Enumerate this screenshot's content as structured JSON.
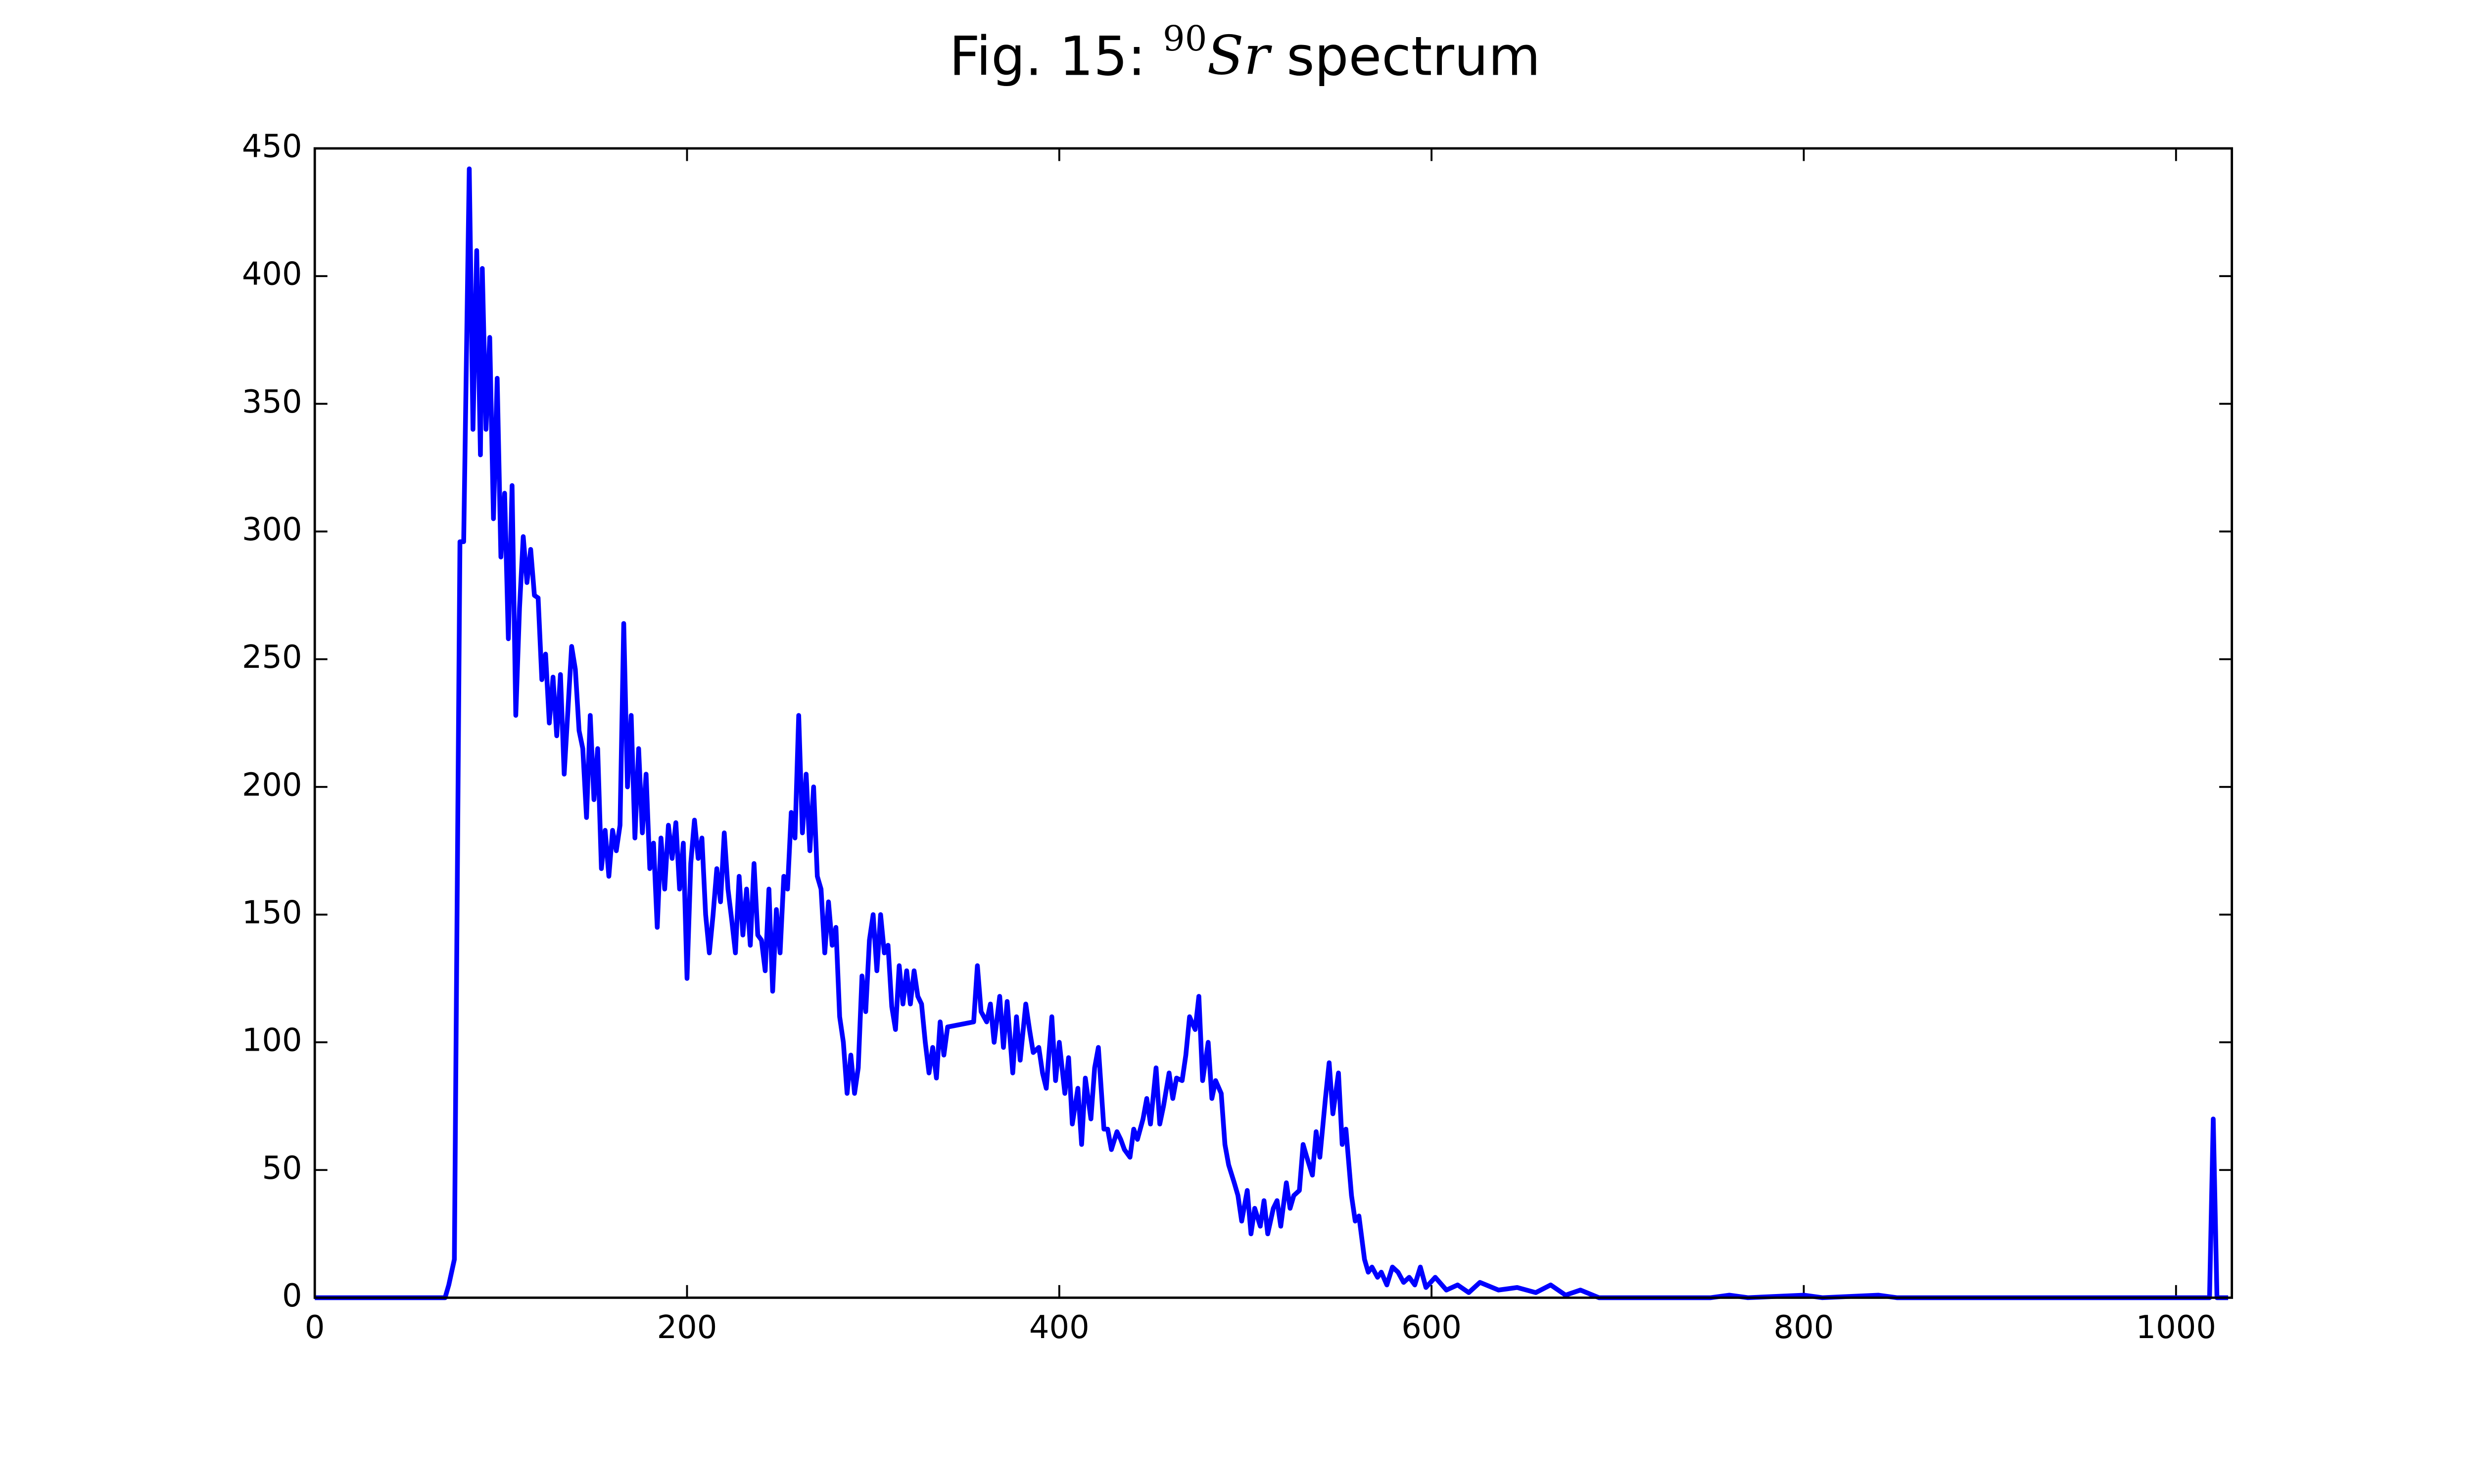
{
  "chart_data": {
    "type": "line",
    "title": [
      "Fig. 15: ",
      "90",
      "Sr",
      " spectrum"
    ],
    "xlim": [
      0,
      1030
    ],
    "ylim": [
      0,
      450
    ],
    "xticks": [
      0,
      200,
      400,
      600,
      800,
      1000
    ],
    "yticks": [
      0,
      50,
      100,
      150,
      200,
      250,
      300,
      350,
      400,
      450
    ],
    "grid": false,
    "series": [
      {
        "color": "#0000ff",
        "x": [
          0,
          70,
          72,
          75,
          78,
          80,
          83,
          85,
          87,
          89,
          90,
          92,
          94,
          96,
          98,
          100,
          102,
          104,
          106,
          108,
          110,
          112,
          114,
          116,
          118,
          120,
          122,
          124,
          126,
          128,
          130,
          132,
          134,
          136,
          138,
          140,
          142,
          144,
          146,
          148,
          150,
          152,
          154,
          156,
          158,
          160,
          162,
          164,
          166,
          168,
          170,
          172,
          174,
          176,
          178,
          180,
          182,
          184,
          186,
          188,
          190,
          192,
          194,
          196,
          198,
          200,
          202,
          204,
          206,
          208,
          210,
          212,
          214,
          216,
          218,
          220,
          222,
          224,
          226,
          228,
          230,
          232,
          234,
          236,
          238,
          240,
          242,
          244,
          246,
          248,
          250,
          252,
          254,
          256,
          258,
          260,
          262,
          264,
          266,
          268,
          270,
          272,
          274,
          276,
          278,
          280,
          282,
          284,
          286,
          288,
          290,
          292,
          294,
          296,
          298,
          300,
          302,
          304,
          306,
          308,
          310,
          312,
          314,
          316,
          318,
          320,
          322,
          324,
          326,
          328,
          330,
          332,
          334,
          336,
          338,
          340,
          354,
          356,
          358,
          361,
          363,
          365,
          368,
          370,
          372,
          375,
          377,
          379,
          382,
          384,
          386,
          389,
          391,
          393,
          396,
          398,
          400,
          403,
          405,
          407,
          410,
          412,
          414,
          417,
          419,
          421,
          424,
          426,
          428,
          431,
          433,
          435,
          438,
          440,
          442,
          445,
          447,
          449,
          452,
          454,
          456,
          459,
          461,
          463,
          466,
          468,
          470,
          473,
          475,
          477,
          480,
          482,
          484,
          487,
          489,
          491,
          494,
          496,
          498,
          501,
          503,
          505,
          508,
          510,
          512,
          515,
          517,
          519,
          522,
          524,
          526,
          529,
          531,
          533,
          536,
          538,
          540,
          543,
          545,
          547,
          550,
          552,
          554,
          557,
          559,
          561,
          564,
          566,
          568,
          571,
          573,
          576,
          579,
          582,
          585,
          588,
          591,
          594,
          597,
          602,
          608,
          614,
          620,
          626,
          636,
          646,
          656,
          664,
          672,
          680,
          690,
          750,
          760,
          770,
          800,
          810,
          840,
          850,
          1018,
          1020,
          1022,
          1028
        ],
        "values": [
          0,
          0,
          5,
          15,
          296,
          296,
          442,
          340,
          410,
          330,
          403,
          340,
          376,
          305,
          360,
          290,
          315,
          258,
          318,
          228,
          270,
          298,
          280,
          293,
          275,
          274,
          242,
          252,
          225,
          243,
          220,
          244,
          205,
          230,
          255,
          246,
          222,
          215,
          188,
          228,
          195,
          215,
          168,
          183,
          165,
          183,
          175,
          185,
          264,
          200,
          228,
          180,
          215,
          182,
          205,
          168,
          178,
          145,
          180,
          160,
          185,
          172,
          186,
          160,
          178,
          125,
          170,
          187,
          172,
          180,
          150,
          135,
          150,
          168,
          155,
          182,
          160,
          148,
          135,
          165,
          142,
          160,
          138,
          170,
          142,
          140,
          128,
          160,
          120,
          152,
          135,
          165,
          160,
          190,
          180,
          228,
          182,
          205,
          175,
          200,
          165,
          160,
          135,
          155,
          138,
          145,
          110,
          100,
          80,
          95,
          80,
          90,
          126,
          112,
          140,
          150,
          128,
          150,
          135,
          138,
          114,
          105,
          130,
          115,
          128,
          115,
          128,
          118,
          115,
          100,
          88,
          98,
          86,
          108,
          95,
          106,
          108,
          130,
          112,
          108,
          115,
          100,
          118,
          98,
          116,
          88,
          110,
          93,
          115,
          105,
          96,
          98,
          88,
          82,
          110,
          85,
          100,
          80,
          94,
          68,
          82,
          60,
          86,
          70,
          90,
          98,
          66,
          66,
          58,
          65,
          62,
          58,
          55,
          66,
          62,
          70,
          78,
          68,
          90,
          68,
          75,
          88,
          78,
          86,
          85,
          95,
          110,
          105,
          118,
          85,
          100,
          78,
          85,
          80,
          60,
          52,
          45,
          40,
          30,
          42,
          25,
          35,
          28,
          38,
          25,
          35,
          38,
          28,
          45,
          35,
          40,
          42,
          60,
          55,
          48,
          65,
          55,
          78,
          92,
          72,
          88,
          60,
          66,
          40,
          30,
          32,
          15,
          10,
          12,
          8,
          10,
          5,
          12,
          10,
          6,
          8,
          5,
          12,
          4,
          8,
          3,
          5,
          2,
          6,
          3,
          4,
          2,
          5,
          1,
          3,
          0,
          0,
          1,
          0,
          1,
          0,
          1,
          0,
          0,
          70,
          0,
          0
        ]
      }
    ]
  }
}
